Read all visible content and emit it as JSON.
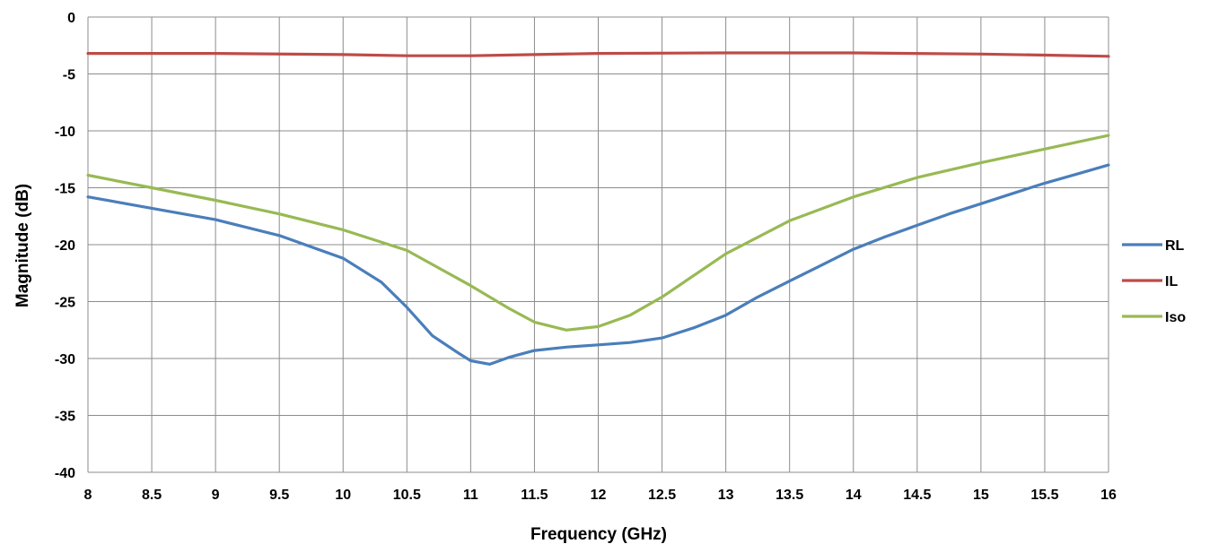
{
  "chart_data": {
    "type": "line",
    "title": "",
    "xlabel": "Frequency (GHz)",
    "ylabel": "Magnitude (dB)",
    "xlim": [
      8,
      16
    ],
    "ylim": [
      -40,
      0
    ],
    "x_ticks": [
      "8",
      "8.5",
      "9",
      "9.5",
      "10",
      "10.5",
      "11",
      "11.5",
      "12",
      "12.5",
      "13",
      "13.5",
      "14",
      "14.5",
      "15",
      "15.5",
      "16"
    ],
    "y_ticks": [
      "0",
      "-5",
      "-10",
      "-15",
      "-20",
      "-25",
      "-30",
      "-35",
      "-40"
    ],
    "grid": true,
    "legend_position": "right",
    "series": [
      {
        "name": "RL",
        "color": "#4a7ebb",
        "x": [
          8,
          8.5,
          9,
          9.5,
          10,
          10.3,
          10.5,
          10.7,
          10.9,
          11.0,
          11.15,
          11.3,
          11.5,
          11.75,
          12.0,
          12.25,
          12.5,
          12.75,
          13.0,
          13.25,
          13.5,
          13.75,
          14.0,
          14.25,
          14.5,
          14.75,
          15.0,
          15.25,
          15.5,
          15.75,
          16.0
        ],
        "y": [
          -15.8,
          -16.8,
          -17.8,
          -19.2,
          -21.2,
          -23.3,
          -25.5,
          -28.0,
          -29.5,
          -30.2,
          -30.5,
          -29.9,
          -29.3,
          -29.0,
          -28.8,
          -28.6,
          -28.2,
          -27.3,
          -26.2,
          -24.6,
          -23.2,
          -21.8,
          -20.4,
          -19.3,
          -18.3,
          -17.3,
          -16.4,
          -15.5,
          -14.6,
          -13.8,
          -13.0
        ]
      },
      {
        "name": "IL",
        "color": "#be4b48",
        "x": [
          8,
          9,
          10,
          10.5,
          11,
          11.5,
          12,
          13,
          14,
          15,
          15.5,
          16
        ],
        "y": [
          -3.2,
          -3.2,
          -3.3,
          -3.4,
          -3.4,
          -3.3,
          -3.2,
          -3.15,
          -3.15,
          -3.25,
          -3.35,
          -3.45
        ]
      },
      {
        "name": "Iso",
        "color": "#98b954",
        "x": [
          8,
          8.5,
          9,
          9.5,
          10,
          10.5,
          11,
          11.3,
          11.5,
          11.75,
          12.0,
          12.25,
          12.5,
          12.75,
          13.0,
          13.5,
          14.0,
          14.5,
          15.0,
          15.5,
          16.0
        ],
        "y": [
          -13.9,
          -15.0,
          -16.1,
          -17.3,
          -18.7,
          -20.5,
          -23.6,
          -25.6,
          -26.8,
          -27.5,
          -27.2,
          -26.2,
          -24.6,
          -22.7,
          -20.8,
          -17.9,
          -15.8,
          -14.1,
          -12.8,
          -11.6,
          -10.4
        ]
      }
    ]
  }
}
